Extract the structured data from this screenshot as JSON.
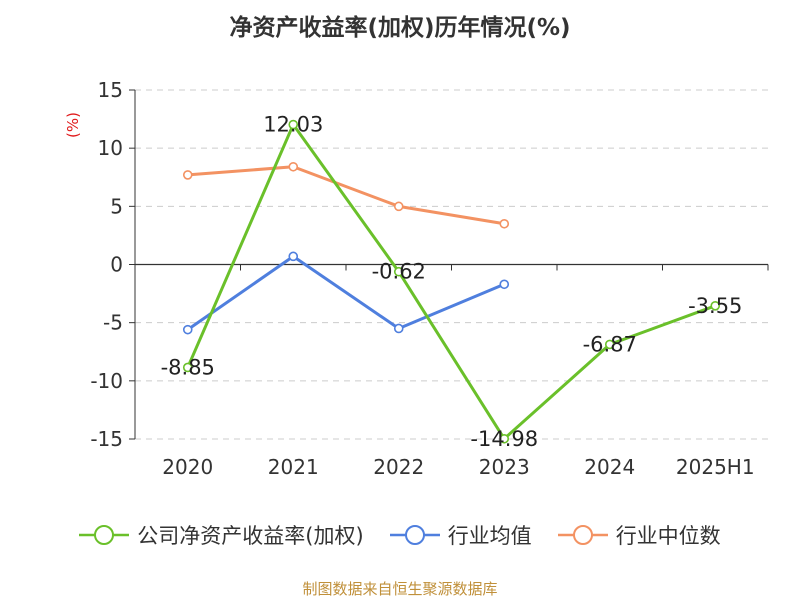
{
  "title": "净资产收益率(加权)历年情况(%)",
  "source_note": "制图数据来自恒生聚源数据库",
  "chart_data": {
    "type": "line",
    "title": "净资产收益率(加权)历年情况(%)",
    "ylabel": "(%)",
    "xlabel": "",
    "categories": [
      "2020",
      "2021",
      "2022",
      "2023",
      "2024",
      "2025H1"
    ],
    "ylim": [
      -15,
      15
    ],
    "yticks": [
      15,
      10,
      5,
      0,
      -5,
      -10,
      -15
    ],
    "grid": "horizontal dashed",
    "legend_position": "bottom",
    "series": [
      {
        "name": "公司净资产收益率(加权)",
        "color": "#6ac02a",
        "values": [
          -8.85,
          12.03,
          -0.62,
          -14.98,
          -6.87,
          -3.55
        ],
        "labels": [
          "-8.85",
          "12.03",
          "-0.62",
          "-14.98",
          "-6.87",
          "-3.55"
        ]
      },
      {
        "name": "行业均值",
        "color": "#4f7fde",
        "values": [
          -5.6,
          0.7,
          -5.5,
          -1.7,
          null,
          null
        ]
      },
      {
        "name": "行业中位数",
        "color": "#f39262",
        "values": [
          7.7,
          8.4,
          5.0,
          3.5,
          null,
          null
        ]
      }
    ]
  }
}
